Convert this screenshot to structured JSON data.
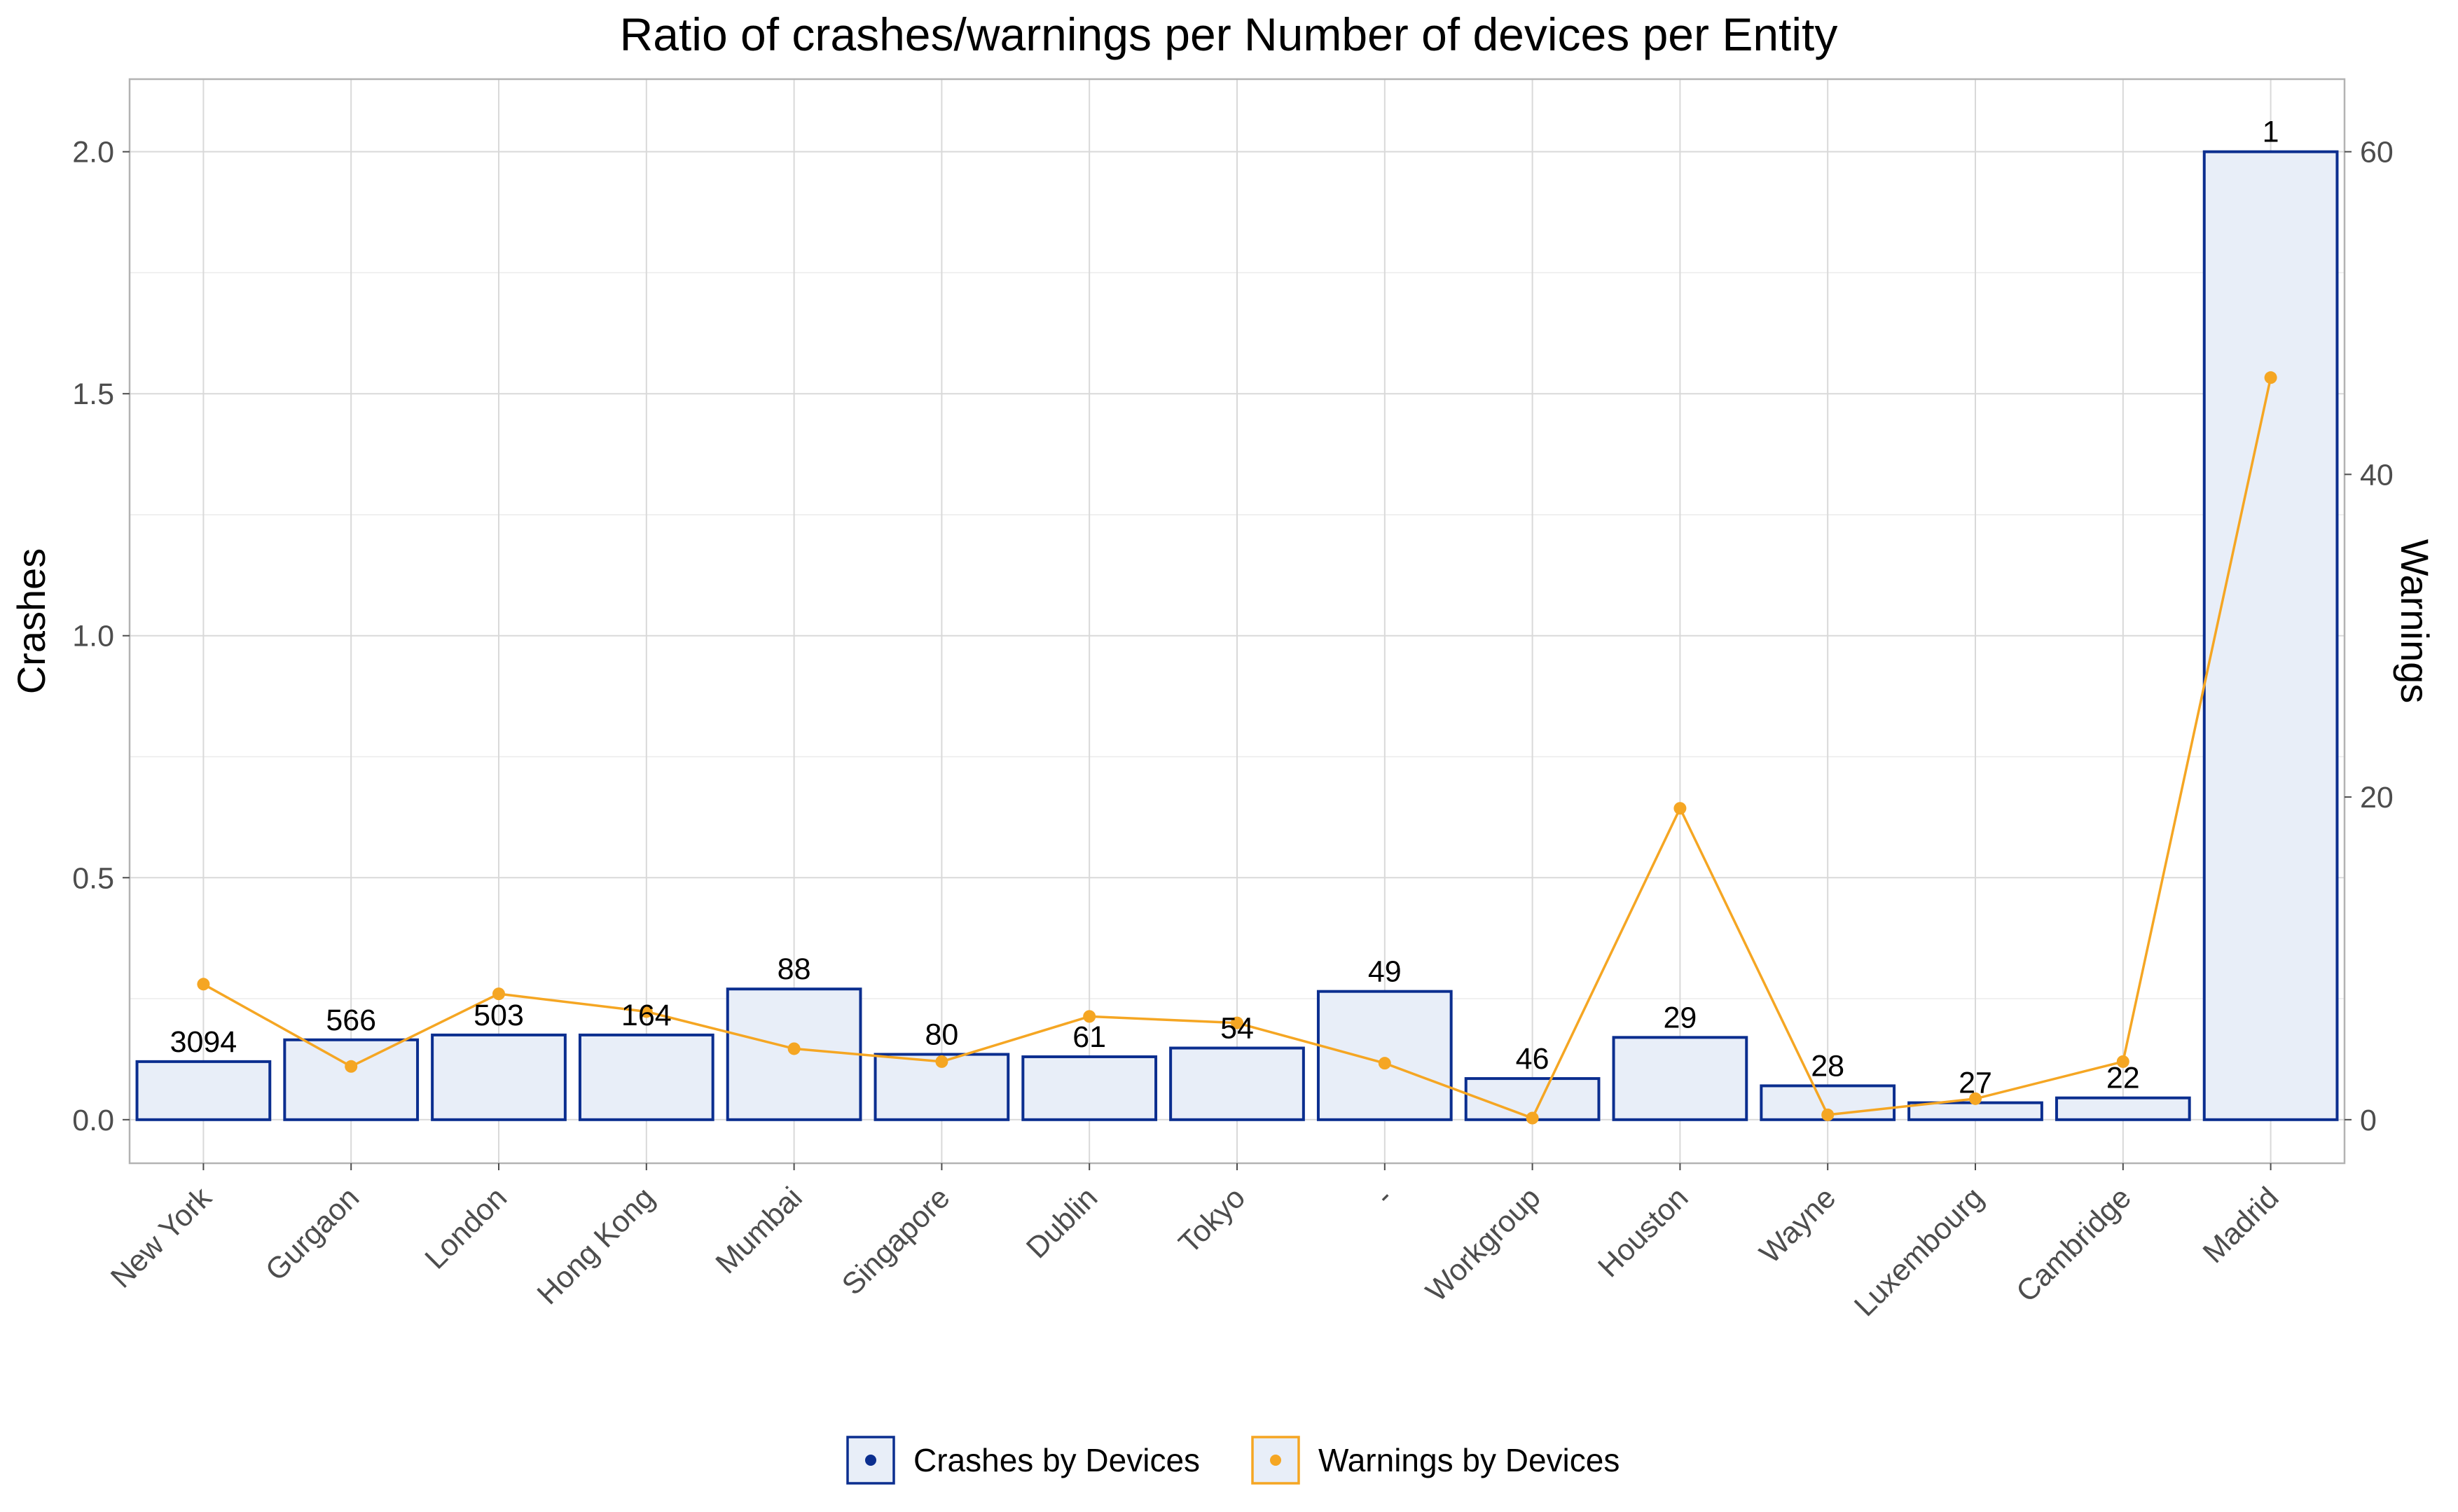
{
  "chart_data": {
    "type": "bar",
    "title": "Ratio of crashes/warnings per Number of devices per Entity",
    "xlabel": "",
    "ylabel": "Crashes",
    "y2label": "Warnings",
    "categories": [
      "New York",
      "Gurgaon",
      "London",
      "Hong Kong",
      "Mumbai",
      "Singapore",
      "Dublin",
      "Tokyo",
      "-",
      "Workgroup",
      "Houston",
      "Wayne",
      "Luxembourg",
      "Cambridge",
      "Madrid"
    ],
    "ylim": [
      -0.09,
      2.15
    ],
    "y_ticks": [
      "0.0",
      "0.5",
      "1.0",
      "1.5",
      "2.0"
    ],
    "y2lim": [
      -2.7,
      64.5
    ],
    "y2_ticks": [
      "0",
      "20",
      "40",
      "60"
    ],
    "grid": true,
    "legend_position": "bottom",
    "series": [
      {
        "name": "Crashes by Devices",
        "type": "bar",
        "axis": "left",
        "color": "#0b2e8f",
        "fill": "#e8eef8",
        "values": [
          0.12,
          0.165,
          0.175,
          0.175,
          0.27,
          0.135,
          0.13,
          0.148,
          0.265,
          0.085,
          0.17,
          0.07,
          0.035,
          0.045,
          2.0
        ]
      },
      {
        "name": "Warnings by Devices",
        "type": "line",
        "axis": "right",
        "color": "#f5a623",
        "values": [
          8.4,
          3.3,
          7.8,
          6.7,
          4.4,
          3.6,
          6.4,
          6.0,
          3.5,
          0.1,
          19.3,
          0.3,
          1.3,
          3.6,
          46.0
        ]
      }
    ],
    "bar_labels": [
      "3094",
      "566",
      "503",
      "164",
      "88",
      "80",
      "61",
      "54",
      "49",
      "46",
      "29",
      "28",
      "27",
      "22",
      "1"
    ]
  }
}
